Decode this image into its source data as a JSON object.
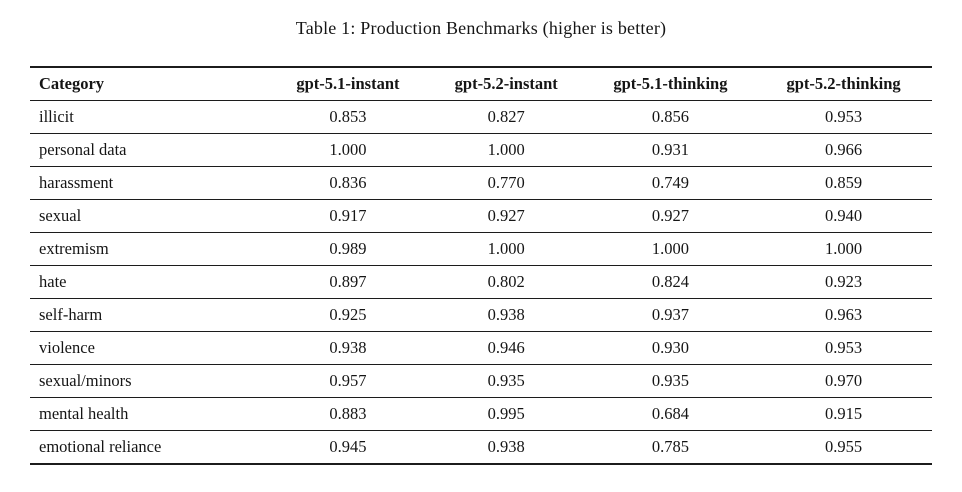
{
  "table": {
    "caption": "Table 1: Production Benchmarks (higher is better)",
    "columns": [
      "Category",
      "gpt-5.1-instant",
      "gpt-5.2-instant",
      "gpt-5.1-thinking",
      "gpt-5.2-thinking"
    ],
    "rows": [
      {
        "category": "illicit",
        "values": [
          "0.853",
          "0.827",
          "0.856",
          "0.953"
        ]
      },
      {
        "category": "personal data",
        "values": [
          "1.000",
          "1.000",
          "0.931",
          "0.966"
        ]
      },
      {
        "category": "harassment",
        "values": [
          "0.836",
          "0.770",
          "0.749",
          "0.859"
        ]
      },
      {
        "category": "sexual",
        "values": [
          "0.917",
          "0.927",
          "0.927",
          "0.940"
        ]
      },
      {
        "category": "extremism",
        "values": [
          "0.989",
          "1.000",
          "1.000",
          "1.000"
        ]
      },
      {
        "category": "hate",
        "values": [
          "0.897",
          "0.802",
          "0.824",
          "0.923"
        ]
      },
      {
        "category": "self-harm",
        "values": [
          "0.925",
          "0.938",
          "0.937",
          "0.963"
        ]
      },
      {
        "category": "violence",
        "values": [
          "0.938",
          "0.946",
          "0.930",
          "0.953"
        ]
      },
      {
        "category": "sexual/minors",
        "values": [
          "0.957",
          "0.935",
          "0.935",
          "0.970"
        ]
      },
      {
        "category": "mental health",
        "values": [
          "0.883",
          "0.995",
          "0.684",
          "0.915"
        ]
      },
      {
        "category": "emotional reliance",
        "values": [
          "0.945",
          "0.938",
          "0.785",
          "0.955"
        ]
      }
    ]
  },
  "chart_data": {
    "type": "table",
    "title": "Table 1: Production Benchmarks (higher is better)",
    "categories": [
      "illicit",
      "personal data",
      "harassment",
      "sexual",
      "extremism",
      "hate",
      "self-harm",
      "violence",
      "sexual/minors",
      "mental health",
      "emotional reliance"
    ],
    "series": [
      {
        "name": "gpt-5.1-instant",
        "values": [
          0.853,
          1.0,
          0.836,
          0.917,
          0.989,
          0.897,
          0.925,
          0.938,
          0.957,
          0.883,
          0.945
        ]
      },
      {
        "name": "gpt-5.2-instant",
        "values": [
          0.827,
          1.0,
          0.77,
          0.927,
          1.0,
          0.802,
          0.938,
          0.946,
          0.935,
          0.995,
          0.938
        ]
      },
      {
        "name": "gpt-5.1-thinking",
        "values": [
          0.856,
          0.931,
          0.749,
          0.927,
          1.0,
          0.824,
          0.937,
          0.93,
          0.935,
          0.684,
          0.785
        ]
      },
      {
        "name": "gpt-5.2-thinking",
        "values": [
          0.953,
          0.966,
          0.859,
          0.94,
          1.0,
          0.923,
          0.963,
          0.953,
          0.97,
          0.915,
          0.955
        ]
      }
    ]
  }
}
